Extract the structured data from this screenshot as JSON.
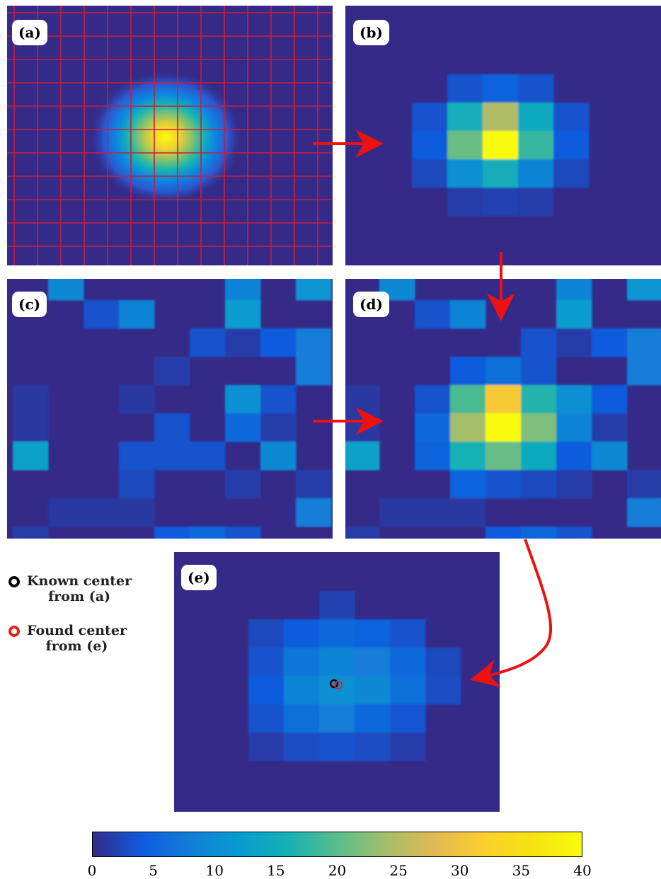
{
  "panels": [
    {
      "id": "a",
      "label": "(a)"
    },
    {
      "id": "b",
      "label": "(b)"
    },
    {
      "id": "c",
      "label": "(c)"
    },
    {
      "id": "d",
      "label": "(d)"
    },
    {
      "id": "e",
      "label": "(e)"
    }
  ],
  "legend": {
    "known": {
      "line1": "Known center",
      "line2": "from (a)",
      "color": "#000000"
    },
    "found": {
      "line1": "Found center",
      "line2": "from (e)",
      "color": "#e0261a"
    }
  },
  "colorbar": {
    "min": 0,
    "max": 40,
    "ticks": [
      "0",
      "5",
      "10",
      "15",
      "20",
      "25",
      "30",
      "35",
      "40"
    ],
    "colormap": "parula"
  },
  "colors": {
    "arrow": "#ee1111",
    "grid": "#c81e3c",
    "background": "#352a87"
  }
}
